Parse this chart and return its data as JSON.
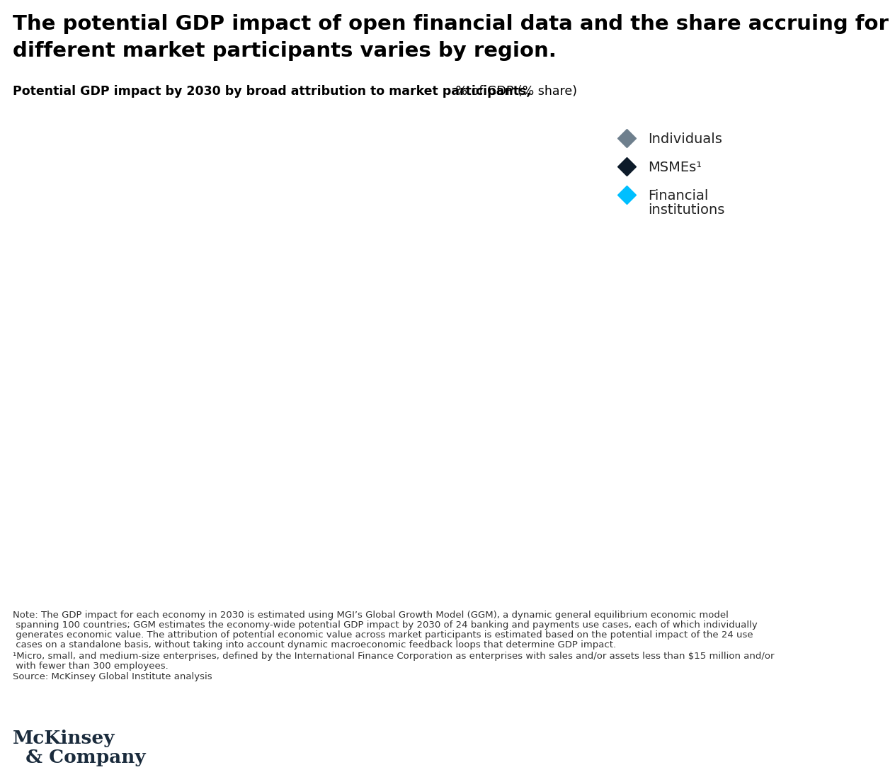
{
  "title_line1": "The potential GDP impact of open financial data and the share accruing for",
  "title_line2": "different market participants varies by region.",
  "subtitle_bold": "Potential GDP impact by 2030 by broad attribution to market participants,",
  "subtitle_normal": " % of GDP (% share)",
  "legend_items": [
    {
      "label": "Individuals",
      "color": "#6e7f8d"
    },
    {
      "label": "MSMEs¹",
      "color": "#0d1b2a"
    },
    {
      "label": "Financial\ninstitutions",
      "color": "#00bfff"
    }
  ],
  "note_line1": "Note: The GDP impact for each economy in 2030 is estimated using MGI’s Global Growth Model (GGM), a dynamic general equilibrium economic model",
  "note_line2": " spanning 100 countries; GGM estimates the economy-wide potential GDP impact by 2030 of 24 banking and payments use cases, each of which individually",
  "note_line3": " generates economic value. The attribution of potential economic value across market participants is estimated based on the potential impact of the 24 use",
  "note_line4": " cases on a standalone basis, without taking into account dynamic macroeconomic feedback loops that determine GDP impact.",
  "footnote_line1": "¹Micro, small, and medium-size enterprises, defined by the International Finance Corporation as enterprises with sales and/or assets less than $15 million and/or",
  "footnote_line2": " with fewer than 300 employees.",
  "source_text": "Source: McKinsey Global Institute analysis",
  "mckinsey_line1": "McKinsey",
  "mckinsey_line2": "  & Company",
  "background_color": "#ffffff",
  "title_fontsize": 21,
  "subtitle_fontsize": 12.5,
  "legend_fontsize": 14,
  "note_fontsize": 9.5,
  "mckinsey_fontsize": 19
}
